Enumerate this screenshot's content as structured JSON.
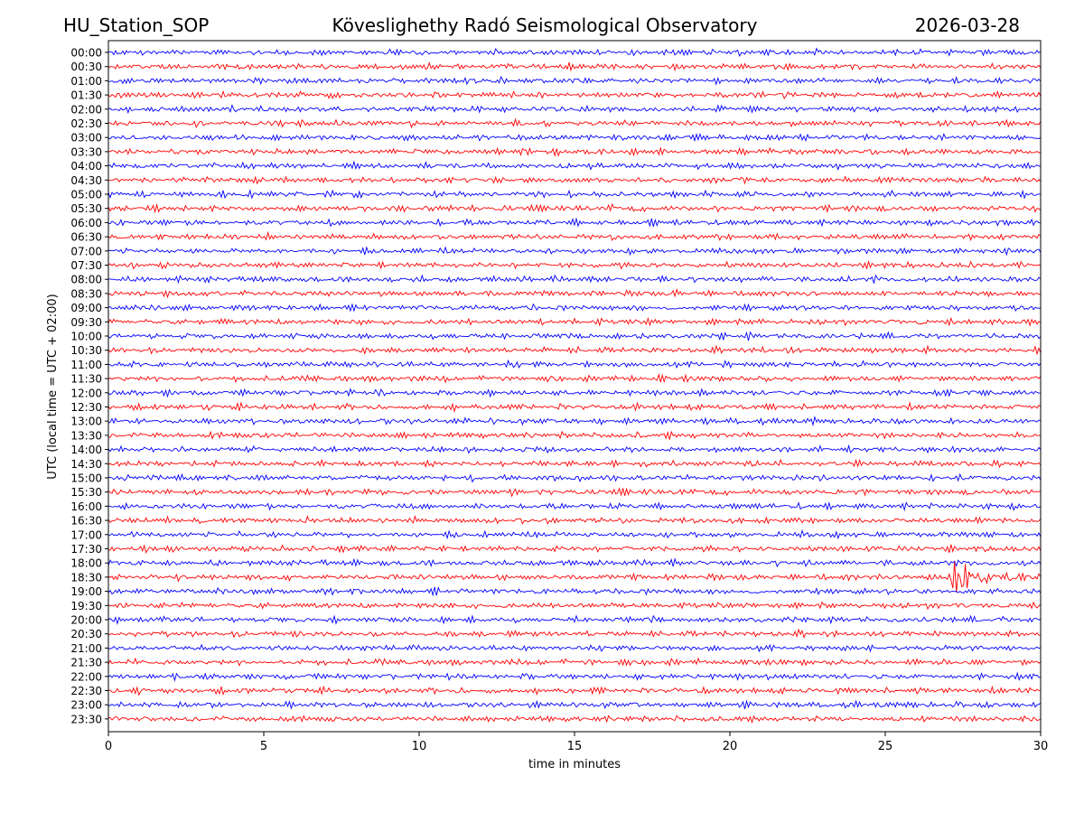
{
  "header": {
    "station": "HU_Station_SOP",
    "observatory": "Köveslighethy Radó Seismological Observatory",
    "date": "2026-03-28"
  },
  "chart_data": {
    "type": "line",
    "subtype": "helicorder",
    "title": "Köveslighethy Radó Seismological Observatory",
    "xlabel": "time in minutes",
    "ylabel": "UTC (local time = UTC + 02:00)",
    "xlim": [
      0,
      30
    ],
    "x_ticks": [
      "0",
      "5",
      "10",
      "15",
      "20",
      "25",
      "30"
    ],
    "row_labels": [
      "00:00",
      "00:30",
      "01:00",
      "01:30",
      "02:00",
      "02:30",
      "03:00",
      "03:30",
      "04:00",
      "04:30",
      "05:00",
      "05:30",
      "06:00",
      "06:30",
      "07:00",
      "07:30",
      "08:00",
      "08:30",
      "09:00",
      "09:30",
      "10:00",
      "10:30",
      "11:00",
      "11:30",
      "12:00",
      "12:30",
      "13:00",
      "13:30",
      "14:00",
      "14:30",
      "15:00",
      "15:30",
      "16:00",
      "16:30",
      "17:00",
      "17:30",
      "18:00",
      "18:30",
      "19:00",
      "19:30",
      "20:00",
      "20:30",
      "21:00",
      "21:30",
      "22:00",
      "22:30",
      "23:00",
      "23:30"
    ],
    "trace_colors": [
      "#0000ff",
      "#ff0000"
    ],
    "events": [
      {
        "row": "18:30",
        "minute_start": 26.2,
        "minute_peak": 27.4,
        "minute_end": 29.5,
        "relative_amplitude": 4.0
      }
    ]
  }
}
